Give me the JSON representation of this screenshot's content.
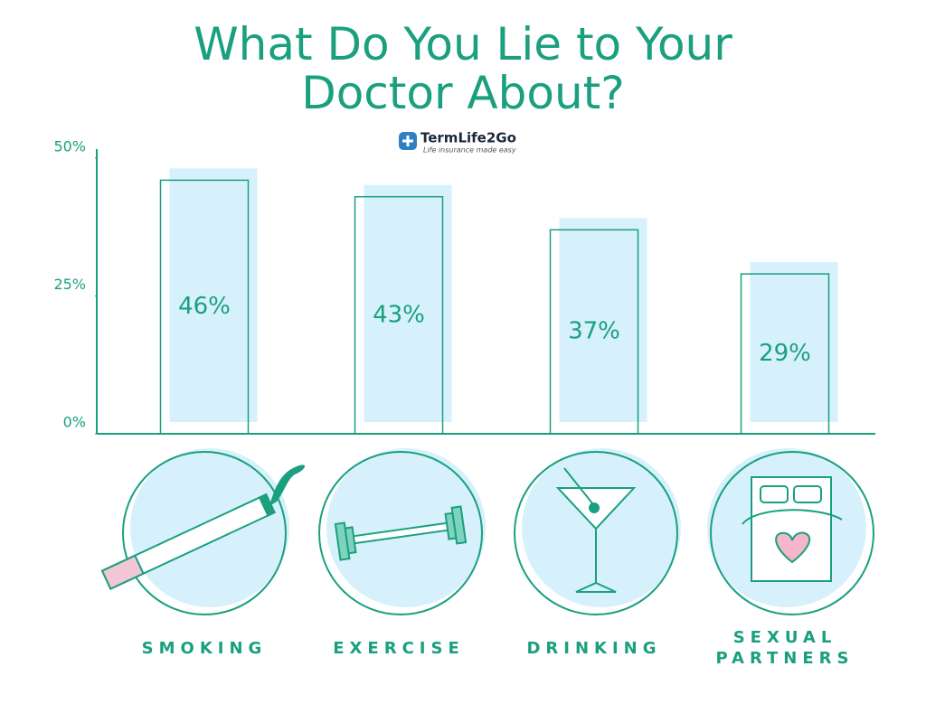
{
  "logo": {
    "name": "TermLife2Go",
    "tagline": "Life insurance made easy"
  },
  "chart_data": {
    "type": "bar",
    "title": "What Do You Lie to Your Doctor About?",
    "categories": [
      "SMOKING",
      "EXERCISE",
      "DRINKING",
      "SEXUAL PARTNERS"
    ],
    "values": [
      46,
      43,
      37,
      29
    ],
    "value_labels": [
      "46%",
      "43%",
      "37%",
      "29%"
    ],
    "color": "#d6f1fb",
    "outline_color": "#1aa07f",
    "ylim": [
      0,
      50
    ],
    "yticks": [
      {
        "value": 0,
        "label": "0%"
      },
      {
        "value": 25,
        "label": "25%"
      },
      {
        "value": 50,
        "label": "50%"
      }
    ]
  }
}
